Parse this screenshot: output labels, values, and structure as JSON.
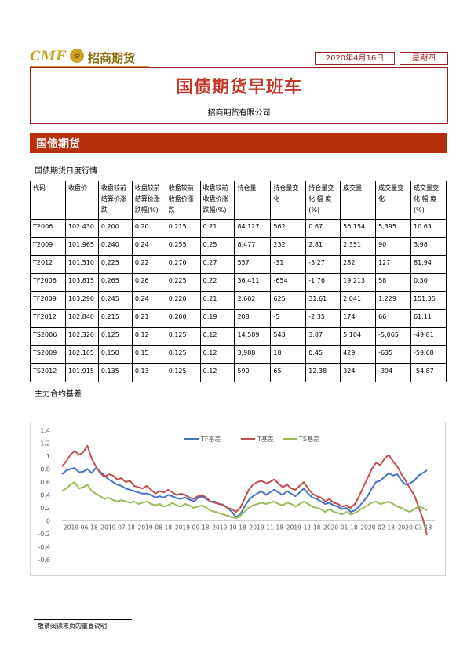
{
  "header": {
    "logo_cmf": "CMF",
    "logo_cn": "招商期货",
    "date": "2020年4月16日",
    "weekday": "星期四"
  },
  "title": "国债期货早班车",
  "company": "招商期货有限公司",
  "section": "国债期货",
  "table_title": "国债期货日度行情",
  "table": {
    "headers": [
      "代码",
      "收盘价",
      "收盘较前结算价涨跌",
      "收盘较前结算价涨跌幅(%)",
      "收盘较前收盘价涨跌",
      "收盘较前收盘价涨跌幅(%)",
      "持仓量",
      "持仓量变化",
      "持仓量变化 幅 度(%)",
      "成交量",
      "成交量变化",
      "成交量变化 幅 度(%)"
    ],
    "rows": [
      [
        "T2006",
        "102.430",
        "0.200",
        "0.20",
        "0.215",
        "0.21",
        "84,127",
        "562",
        "0.67",
        "56,154",
        "5,395",
        "10.63"
      ],
      [
        "T2009",
        "101.965",
        "0.240",
        "0.24",
        "0.255",
        "0.25",
        "8,477",
        "232",
        "2.81",
        "2,351",
        "90",
        "3.98"
      ],
      [
        "T2012",
        "101.510",
        "0.225",
        "0.22",
        "0.270",
        "0.27",
        "557",
        "-31",
        "-5.27",
        "282",
        "127",
        "81.94"
      ],
      [
        "TF2006",
        "103.815",
        "0.265",
        "0.26",
        "0.225",
        "0.22",
        "36,411",
        "-654",
        "-1.76",
        "19,213",
        "58",
        "0.30"
      ],
      [
        "TF2009",
        "103.290",
        "0.245",
        "0.24",
        "0.220",
        "0.21",
        "2,602",
        "625",
        "31.61",
        "2,041",
        "1,229",
        "151.35"
      ],
      [
        "TF2012",
        "102.840",
        "0.215",
        "0.21",
        "0.200",
        "0.19",
        "208",
        "-5",
        "-2.35",
        "174",
        "66",
        "61.11"
      ],
      [
        "TS2006",
        "102.320",
        "0.125",
        "0.12",
        "0.125",
        "0.12",
        "14,589",
        "543",
        "3.87",
        "5,104",
        "-5,065",
        "-49.81"
      ],
      [
        "TS2009",
        "102.105",
        "0.150",
        "0.15",
        "0.125",
        "0.12",
        "3,988",
        "18",
        "0.45",
        "429",
        "-635",
        "-59.68"
      ],
      [
        "TS2012",
        "101.915",
        "0.135",
        "0.13",
        "0.125",
        "0.12",
        "590",
        "65",
        "12.38",
        "324",
        "-394",
        "-54.87"
      ]
    ]
  },
  "chart_title": "主力合约基差",
  "chart_data": {
    "type": "line",
    "x_ticks": [
      "2019-06-18",
      "2019-07-18",
      "2019-08-18",
      "2019-09-18",
      "2019-10-18",
      "2019-11-18",
      "2019-12-18",
      "2020-01-18",
      "2020-02-18",
      "2020-03-18"
    ],
    "y_ticks": [
      "1.4",
      "1.2",
      "1",
      "0.8",
      "0.6",
      "0.4",
      "0.2",
      "0",
      "-0.2",
      "-0.4",
      "-0.6"
    ],
    "ylim": [
      -0.6,
      1.4
    ],
    "legend_position": "top",
    "colors": {
      "TF": "#4472c4",
      "T": "#c0504d",
      "TS": "#9bbb59"
    },
    "series": [
      {
        "name": "TF基差",
        "values": [
          0.72,
          0.78,
          0.8,
          0.82,
          0.75,
          0.76,
          0.8,
          0.74,
          0.82,
          0.76,
          0.7,
          0.64,
          0.6,
          0.56,
          0.54,
          0.5,
          0.48,
          0.46,
          0.44,
          0.42,
          0.42,
          0.4,
          0.36,
          0.38,
          0.36,
          0.4,
          0.38,
          0.35,
          0.34,
          0.36,
          0.33,
          0.3,
          0.35,
          0.38,
          0.34,
          0.3,
          0.3,
          0.26,
          0.25,
          0.2,
          0.14,
          0.06,
          0.1,
          0.22,
          0.32,
          0.38,
          0.42,
          0.46,
          0.4,
          0.44,
          0.48,
          0.44,
          0.4,
          0.46,
          0.42,
          0.38,
          0.44,
          0.5,
          0.42,
          0.36,
          0.34,
          0.3,
          0.26,
          0.28,
          0.24,
          0.22,
          0.18,
          0.2,
          0.14,
          0.16,
          0.22,
          0.3,
          0.38,
          0.5,
          0.6,
          0.62,
          0.68,
          0.74,
          0.7,
          0.72,
          0.62,
          0.56,
          0.58,
          0.62,
          0.7,
          0.74,
          0.78
        ]
      },
      {
        "name": "T基差",
        "values": [
          0.84,
          0.92,
          1.02,
          1.08,
          1.02,
          1.06,
          1.16,
          0.96,
          0.84,
          0.74,
          0.68,
          0.72,
          0.7,
          0.64,
          0.66,
          0.6,
          0.62,
          0.54,
          0.52,
          0.5,
          0.54,
          0.48,
          0.42,
          0.46,
          0.44,
          0.48,
          0.44,
          0.4,
          0.42,
          0.4,
          0.36,
          0.34,
          0.38,
          0.4,
          0.36,
          0.3,
          0.28,
          0.26,
          0.24,
          0.2,
          0.18,
          0.14,
          0.2,
          0.34,
          0.48,
          0.56,
          0.6,
          0.62,
          0.58,
          0.6,
          0.64,
          0.58,
          0.52,
          0.56,
          0.5,
          0.48,
          0.54,
          0.6,
          0.5,
          0.42,
          0.38,
          0.36,
          0.3,
          0.34,
          0.28,
          0.26,
          0.22,
          0.24,
          0.2,
          0.26,
          0.38,
          0.52,
          0.66,
          0.8,
          0.9,
          0.86,
          0.96,
          1.02,
          0.92,
          0.84,
          0.72,
          0.62,
          0.5,
          0.4,
          0.22,
          0.04,
          -0.22
        ]
      },
      {
        "name": "TS基差",
        "values": [
          0.46,
          0.5,
          0.56,
          0.6,
          0.5,
          0.52,
          0.56,
          0.46,
          0.42,
          0.38,
          0.34,
          0.36,
          0.32,
          0.3,
          0.32,
          0.3,
          0.28,
          0.3,
          0.26,
          0.28,
          0.3,
          0.26,
          0.24,
          0.26,
          0.22,
          0.24,
          0.28,
          0.24,
          0.22,
          0.26,
          0.24,
          0.2,
          0.22,
          0.24,
          0.2,
          0.16,
          0.14,
          0.12,
          0.1,
          0.08,
          0.06,
          0.04,
          0.08,
          0.14,
          0.2,
          0.24,
          0.26,
          0.28,
          0.26,
          0.28,
          0.3,
          0.26,
          0.24,
          0.28,
          0.26,
          0.22,
          0.26,
          0.3,
          0.26,
          0.22,
          0.2,
          0.18,
          0.14,
          0.18,
          0.14,
          0.12,
          0.1,
          0.14,
          0.1,
          0.12,
          0.16,
          0.2,
          0.24,
          0.28,
          0.3,
          0.26,
          0.28,
          0.3,
          0.26,
          0.22,
          0.2,
          0.16,
          0.14,
          0.18,
          0.22,
          0.2,
          0.16
        ]
      }
    ]
  },
  "footer": "敬请阅读末页的重要说明"
}
